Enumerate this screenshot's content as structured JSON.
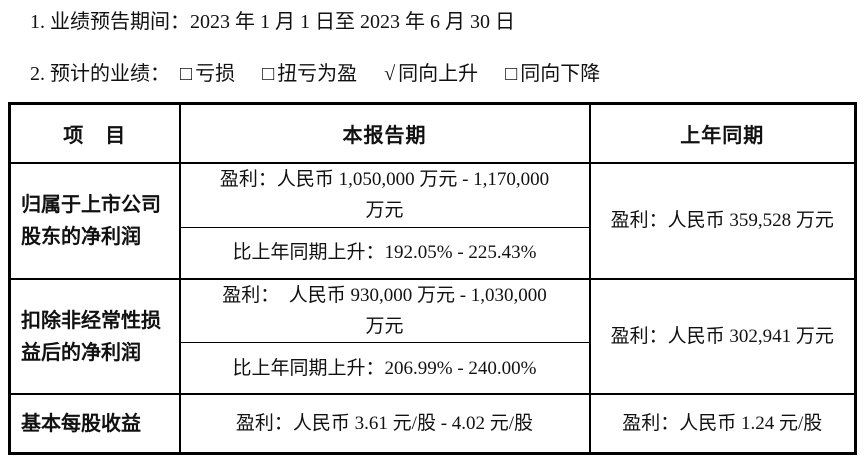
{
  "page": {
    "background_color": "#ffffff",
    "text_color": "#111111",
    "border_color": "#000000"
  },
  "intro": {
    "period_line": "1. 业绩预告期间：2023 年 1 月 1 日至 2023 年 6 月 30 日",
    "forecast_label": "2. 预计的业绩：",
    "options": [
      {
        "mark": "□",
        "label": "亏损",
        "checked": false
      },
      {
        "mark": "□",
        "label": "扭亏为盈",
        "checked": false
      },
      {
        "mark": "√",
        "label": "同向上升",
        "checked": true
      },
      {
        "mark": "□",
        "label": "同向下降",
        "checked": false
      }
    ]
  },
  "table": {
    "headers": {
      "item": "项　目",
      "current_period": "本报告期",
      "prior_period": "上年同期"
    },
    "rows": {
      "net_profit": {
        "item": "归属于上市公司\n股东的净利润",
        "profit": "盈利：人民币 1,050,000 万元 - 1,170,000\n万元",
        "change": "比上年同期上升：192.05% - 225.43%",
        "prior": "盈利：人民币 359,528 万元"
      },
      "net_profit_excl": {
        "item": "扣除非经常性损\n益后的净利润",
        "profit": "盈利：  人民币 930,000 万元 - 1,030,000\n万元",
        "change": "比上年同期上升：206.99% - 240.00%",
        "prior": "盈利：人民币 302,941 万元"
      },
      "eps": {
        "item": "基本每股收益",
        "current": "盈利：人民币 3.61 元/股 - 4.02 元/股",
        "prior": "盈利：人民币 1.24 元/股"
      }
    }
  }
}
